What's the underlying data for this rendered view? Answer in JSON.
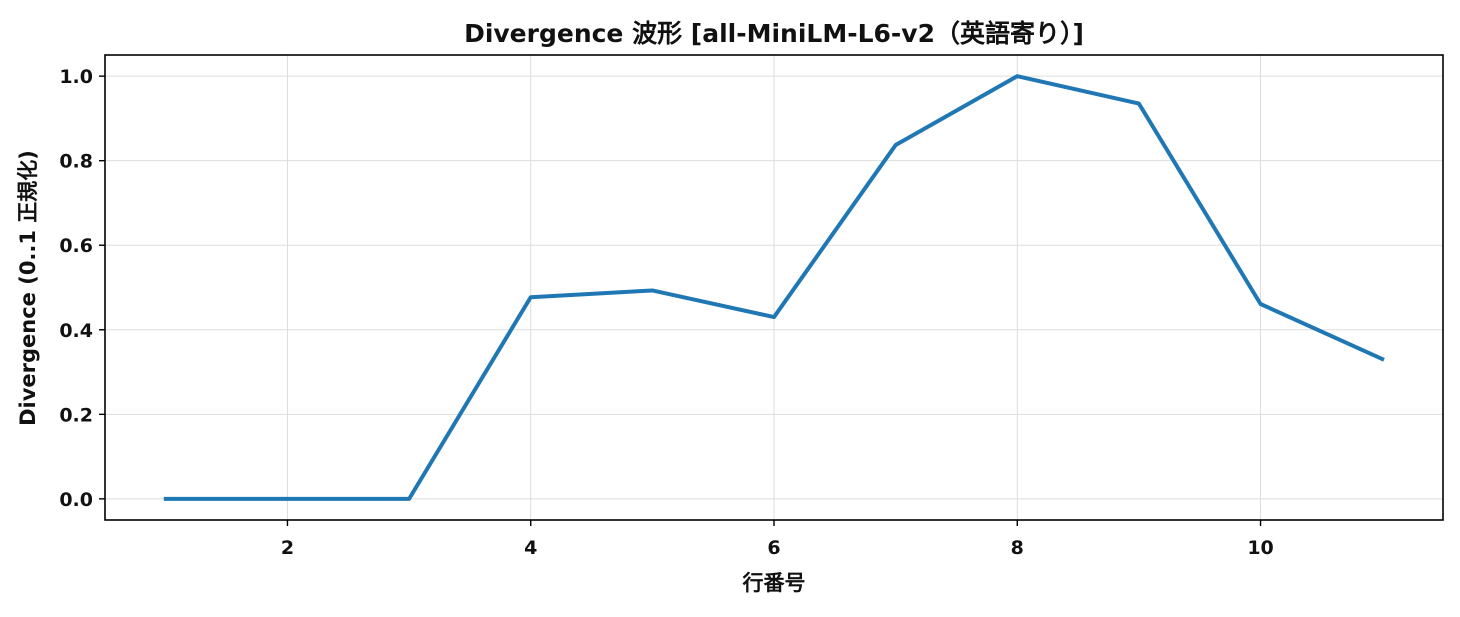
{
  "chart_data": {
    "type": "line",
    "title": "Divergence 波形 [all-MiniLM-L6-v2（英語寄り）]",
    "xlabel": "行番号",
    "ylabel": "Divergence (0..1 正規化)",
    "xlim": [
      0.5,
      11.5
    ],
    "ylim": [
      -0.05,
      1.05
    ],
    "xticks": [
      2,
      4,
      6,
      8,
      10
    ],
    "xtick_labels": [
      "2",
      "4",
      "6",
      "8",
      "10"
    ],
    "yticks": [
      0.0,
      0.2,
      0.4,
      0.6,
      0.8,
      1.0
    ],
    "ytick_labels": [
      "0.0",
      "0.2",
      "0.4",
      "0.6",
      "0.8",
      "1.0"
    ],
    "grid": true,
    "series": [
      {
        "x": [
          1,
          2,
          3,
          4,
          5,
          6,
          7,
          8,
          9,
          10,
          11
        ],
        "y": [
          0.0,
          0.0,
          0.0,
          0.477,
          0.493,
          0.43,
          0.837,
          1.0,
          0.935,
          0.461,
          0.331
        ],
        "color": "#1f77b4"
      }
    ]
  }
}
